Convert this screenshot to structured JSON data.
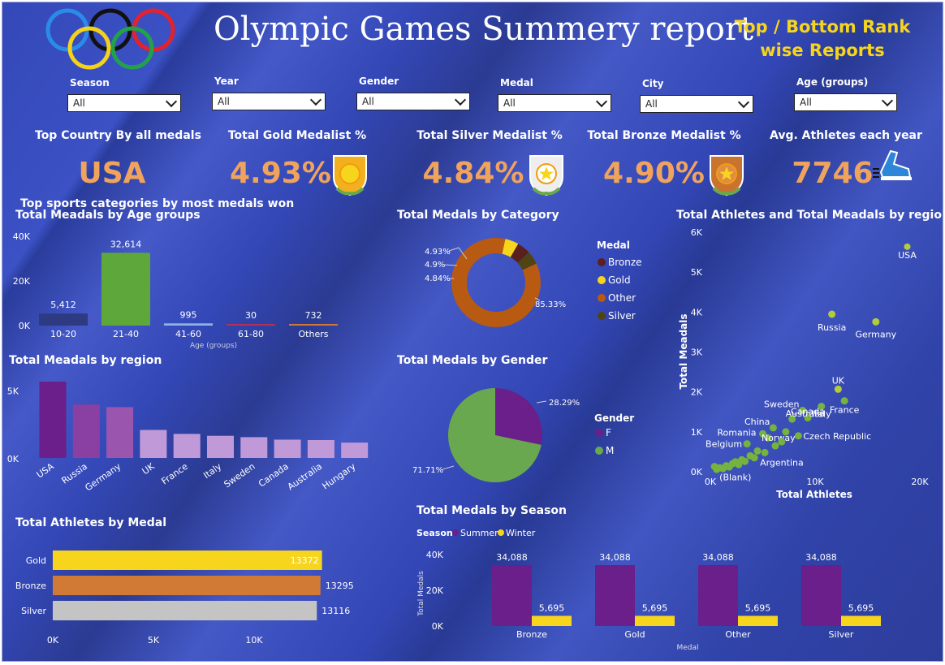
{
  "header": {
    "title": "Olympic Games Summery report",
    "top_bottom_link": [
      "Top / Bottom Rank",
      "wise Reports"
    ]
  },
  "slicers": [
    {
      "label": "Season",
      "value": "All"
    },
    {
      "label": "Year",
      "value": "All"
    },
    {
      "label": "Gender",
      "value": "All"
    },
    {
      "label": "Medal",
      "value": "All"
    },
    {
      "label": "City",
      "value": "All"
    },
    {
      "label": "Age (groups)",
      "value": "All"
    }
  ],
  "kpis": [
    {
      "title": "Top Country By all medals",
      "value": "USA",
      "icon": "none"
    },
    {
      "title": "Total Gold Medalist %",
      "value": "4.93%",
      "icon": "gold-medal-icon"
    },
    {
      "title": "Total Silver Medalist %",
      "value": "4.84%",
      "icon": "silver-medal-icon"
    },
    {
      "title": "Total Bronze Medalist %",
      "value": "4.90%",
      "icon": "bronze-medal-icon"
    },
    {
      "title": "Avg. Athletes each year",
      "value": "7746",
      "icon": "running-shoe-icon"
    }
  ],
  "overlay_text": "Top sports categories by most medals won",
  "colors": {
    "value": "#f0a35c",
    "gold": "#f7d51d",
    "purple": "#6a1f8a",
    "green": "#6aa84f",
    "orange": "#c8641a"
  },
  "chart_data": [
    {
      "id": "age",
      "type": "bar",
      "title": "Total Meadals by Age groups",
      "xlabel": "Age (groups)",
      "ylabel": "",
      "categories": [
        "10-20",
        "21-40",
        "41-60",
        "61-80",
        "Others"
      ],
      "values": [
        5412,
        32614,
        995,
        30,
        732
      ],
      "labels": [
        "5,412",
        "32,614",
        "995",
        "30",
        "732"
      ],
      "ylim": [
        0,
        40000
      ],
      "ticks": [
        "0K",
        "20K",
        "40K"
      ],
      "bar_colors": [
        "#2e3a82",
        "#5ea73a",
        "#8ab4e8",
        "#b0325a",
        "#d0763a"
      ]
    },
    {
      "id": "region",
      "type": "bar",
      "title": "Total Meadals by region",
      "categories": [
        "USA",
        "Russia",
        "Germany",
        "UK",
        "France",
        "Italy",
        "Sweden",
        "Canada",
        "Australia",
        "Hungary"
      ],
      "values": [
        5637,
        3947,
        3756,
        2068,
        1777,
        1637,
        1536,
        1352,
        1320,
        1135
      ],
      "ylim": [
        0,
        6000
      ],
      "ticks": [
        "0K",
        "5K"
      ],
      "bar_colors": [
        "#6a1f8a",
        "#8a3fa2",
        "#9a55ae",
        "#c09ad8",
        "#c09ad8",
        "#c09ad8",
        "#c09ad8",
        "#c09ad8",
        "#c09ad8",
        "#c09ad8"
      ]
    },
    {
      "id": "athletes_medal",
      "type": "bar",
      "orientation": "horizontal",
      "title": "Total Athletes by Medal",
      "categories": [
        "Gold",
        "Bronze",
        "Silver"
      ],
      "values": [
        13372,
        13295,
        13116
      ],
      "labels": [
        "13372",
        "13295",
        "13116"
      ],
      "xlim": [
        0,
        15000
      ],
      "ticks": [
        "0K",
        "5K",
        "10K"
      ],
      "bar_colors": [
        "#f7d51d",
        "#d17a35",
        "#c4c4c4"
      ]
    },
    {
      "id": "category",
      "type": "pie",
      "variant": "donut",
      "title": "Total Medals by Category",
      "legend_title": "Medal",
      "legend": [
        "Bronze",
        "Gold",
        "Other",
        "Silver"
      ],
      "slices": [
        {
          "name": "Gold",
          "value": 4.93,
          "label": "4.93%",
          "color": "#f7d51d"
        },
        {
          "name": "Bronze",
          "value": 4.9,
          "label": "4.9%",
          "color": "#5a1f1f"
        },
        {
          "name": "Silver",
          "value": 4.84,
          "label": "4.84%",
          "color": "#4f4412"
        },
        {
          "name": "Other",
          "value": 85.33,
          "label": "85.33%",
          "color": "#b85a12"
        }
      ],
      "legend_colors": [
        "#5a1f1f",
        "#f7d51d",
        "#b85a12",
        "#4f4412"
      ]
    },
    {
      "id": "gender",
      "type": "pie",
      "title": "Total Medals by Gender",
      "legend_title": "Gender",
      "slices": [
        {
          "name": "F",
          "value": 28.29,
          "label": "28.29%",
          "color": "#6a1f8a"
        },
        {
          "name": "M",
          "value": 71.71,
          "label": "71.71%",
          "color": "#6aa84f"
        }
      ]
    },
    {
      "id": "scatter",
      "type": "scatter",
      "title": "Total Athletes and Total Meadals by region",
      "xlabel": "Total Athletes",
      "ylabel": "Total Meadals",
      "xlim": [
        0,
        20000
      ],
      "ylim": [
        0,
        6000
      ],
      "xticks": [
        "0K",
        "10K",
        "20K"
      ],
      "yticks": [
        "0K",
        "1K",
        "2K",
        "3K",
        "4K",
        "5K",
        "6K"
      ],
      "points": [
        {
          "label": "USA",
          "x": 18800,
          "y": 5637
        },
        {
          "label": "Russia",
          "x": 11600,
          "y": 3947
        },
        {
          "label": "Germany",
          "x": 15800,
          "y": 3756
        },
        {
          "label": "UK",
          "x": 12200,
          "y": 2068
        },
        {
          "label": "France",
          "x": 12800,
          "y": 1777
        },
        {
          "label": "Italy",
          "x": 10600,
          "y": 1637
        },
        {
          "label": "Sweden",
          "x": 8800,
          "y": 1536
        },
        {
          "label": "Canada",
          "x": 9300,
          "y": 1352
        },
        {
          "label": "Australia",
          "x": 7800,
          "y": 1320
        },
        {
          "label": "China",
          "x": 6000,
          "y": 1100
        },
        {
          "label": "Romania",
          "x": 5000,
          "y": 950
        },
        {
          "label": "Norway",
          "x": 5500,
          "y": 850
        },
        {
          "label": "Czech Republic",
          "x": 8400,
          "y": 900
        },
        {
          "label": "Belgium",
          "x": 3500,
          "y": 700
        },
        {
          "label": "Argentina",
          "x": 5200,
          "y": 480
        },
        {
          "label": "(Blank)",
          "x": 400,
          "y": 130
        },
        {
          "label": "",
          "x": 600,
          "y": 60
        },
        {
          "label": "",
          "x": 900,
          "y": 100
        },
        {
          "label": "",
          "x": 1200,
          "y": 80
        },
        {
          "label": "",
          "x": 1500,
          "y": 150
        },
        {
          "label": "",
          "x": 1800,
          "y": 120
        },
        {
          "label": "",
          "x": 2100,
          "y": 200
        },
        {
          "label": "",
          "x": 2400,
          "y": 250
        },
        {
          "label": "",
          "x": 2700,
          "y": 180
        },
        {
          "label": "",
          "x": 3000,
          "y": 300
        },
        {
          "label": "",
          "x": 3300,
          "y": 260
        },
        {
          "label": "",
          "x": 3800,
          "y": 400
        },
        {
          "label": "",
          "x": 4200,
          "y": 350
        },
        {
          "label": "",
          "x": 4500,
          "y": 520
        },
        {
          "label": "",
          "x": 6200,
          "y": 650
        },
        {
          "label": "",
          "x": 6800,
          "y": 750
        },
        {
          "label": "",
          "x": 7200,
          "y": 1000
        }
      ]
    },
    {
      "id": "season",
      "type": "bar",
      "title": "Total Medals by Season",
      "legend_title": "Season",
      "xlabel": "Medal",
      "ylabel": "Total Medals",
      "categories": [
        "Bronze",
        "Gold",
        "Other",
        "Silver"
      ],
      "series": [
        {
          "name": "Summer",
          "values": [
            34088,
            34088,
            34088,
            34088
          ],
          "labels": [
            "34,088",
            "34,088",
            "34,088",
            "34,088"
          ],
          "color": "#6a1f8a"
        },
        {
          "name": "Winter",
          "values": [
            5695,
            5695,
            5695,
            5695
          ],
          "labels": [
            "5,695",
            "5,695",
            "5,695",
            "5,695"
          ],
          "color": "#f7d51d"
        }
      ],
      "ylim": [
        0,
        40000
      ],
      "ticks": [
        "0K",
        "20K",
        "40K"
      ]
    }
  ]
}
